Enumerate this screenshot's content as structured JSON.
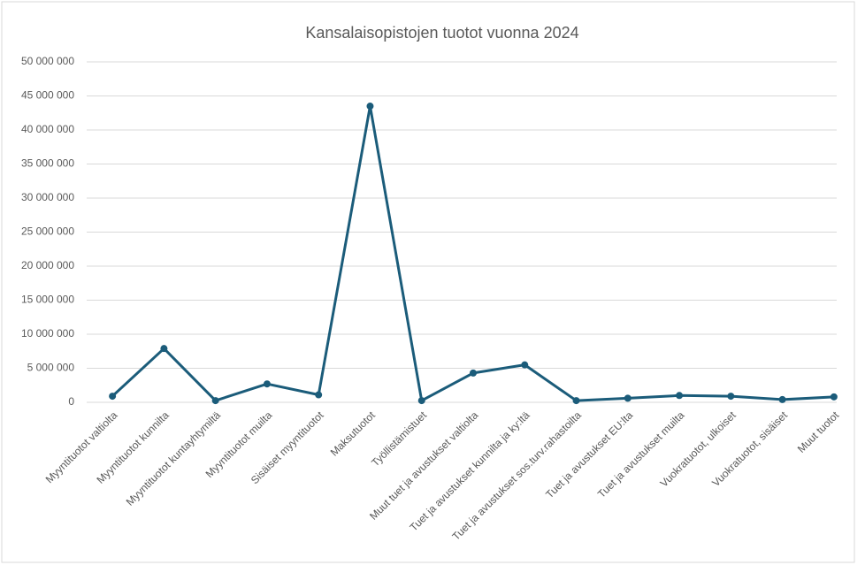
{
  "chart_data": {
    "type": "line",
    "title": "Kansalaisopistojen tuotot vuonna 2024",
    "categories": [
      "Myyntituotot valtiolta",
      "Myyntituotot kunnilta",
      "Myyntituotot kuntayhtymiltä",
      "Myyntituotot muilta",
      "Sisäiset myyntituotot",
      "Maksutuotot",
      "Työllistämistuet",
      "Muut tuet ja avustukset valtiolta",
      "Tuet ja avustukset kunnilta ja ky:ltä",
      "Tuet ja avustukset sos.turv.rahastoilta",
      "Tuet ja avustukset EU:lta",
      "Tuet ja avustukset muilta",
      "Vuokratuotot, ulkoiset",
      "Vuokratuotot, sisäiset",
      "Muut tuotot"
    ],
    "series": [
      {
        "color": "#1b5c7a",
        "values": [
          900000,
          7900000,
          250000,
          2700000,
          1100000,
          43500000,
          250000,
          4300000,
          5500000,
          250000,
          600000,
          1000000,
          900000,
          400000,
          800000
        ]
      }
    ],
    "ylim": [
      0,
      50000000
    ],
    "yticks": [
      0,
      {
        "value": 5000000,
        "label": "5 000 000"
      },
      {
        "value": 10000000,
        "label": "10 000 000"
      },
      {
        "value": 15000000,
        "label": "15 000 000"
      },
      {
        "value": 20000000,
        "label": "20 000 000"
      },
      {
        "value": 25000000,
        "label": "25 000 000"
      },
      {
        "value": 30000000,
        "label": "30 000 000"
      },
      {
        "value": 35000000,
        "label": "35 000 000"
      },
      {
        "value": 40000000,
        "label": "40 000 000"
      },
      {
        "value": 45000000,
        "label": "45 000 000"
      },
      {
        "value": 50000000,
        "label": "50 000 000"
      }
    ],
    "grid": true
  }
}
